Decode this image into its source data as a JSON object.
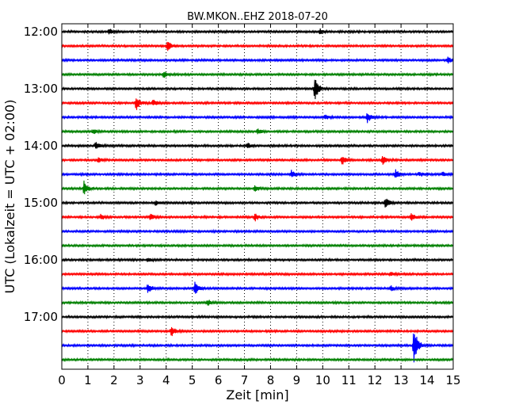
{
  "chart_data": {
    "type": "line",
    "title": "BW.MKON..EHZ 2018-07-20",
    "xlabel": "Zeit  [min]",
    "ylabel": "UTC (Lokalzeit = UTC + 02:00)",
    "xlim": [
      0,
      15
    ],
    "x_ticks": [
      0,
      1,
      2,
      3,
      4,
      5,
      6,
      7,
      8,
      9,
      10,
      11,
      12,
      13,
      14,
      15
    ],
    "x_tick_labels": [
      "0",
      "1",
      "2",
      "3",
      "4",
      "5",
      "6",
      "7",
      "8",
      "9",
      "10",
      "11",
      "12",
      "13",
      "14",
      "15"
    ],
    "y_tick_labels": [
      "12:00",
      "13:00",
      "14:00",
      "15:00",
      "16:00",
      "17:00"
    ],
    "grid": "vertical dotted",
    "line_colors": [
      "#000000",
      "#ff0000",
      "#0000ff",
      "#008000"
    ],
    "traces": [
      {
        "start": "12:00",
        "color": "#000000",
        "events": [
          {
            "t": 1.8,
            "a": 4
          },
          {
            "t": 9.9,
            "a": 3
          }
        ]
      },
      {
        "start": "12:15",
        "color": "#ff0000",
        "events": [
          {
            "t": 4.05,
            "a": 6
          }
        ]
      },
      {
        "start": "12:30",
        "color": "#0000ff",
        "events": [
          {
            "t": 14.8,
            "a": 4
          }
        ]
      },
      {
        "start": "12:45",
        "color": "#008000",
        "events": [
          {
            "t": 3.9,
            "a": 4
          }
        ]
      },
      {
        "start": "13:00",
        "color": "#000000",
        "events": [
          {
            "t": 9.7,
            "a": 16
          }
        ]
      },
      {
        "start": "13:15",
        "color": "#ff0000",
        "events": [
          {
            "t": 2.85,
            "a": 10
          },
          {
            "t": 3.5,
            "a": 4
          }
        ]
      },
      {
        "start": "13:30",
        "color": "#0000ff",
        "events": [
          {
            "t": 10.1,
            "a": 3
          },
          {
            "t": 11.7,
            "a": 7
          }
        ]
      },
      {
        "start": "13:45",
        "color": "#008000",
        "events": [
          {
            "t": 1.2,
            "a": 3
          },
          {
            "t": 7.5,
            "a": 4
          }
        ]
      },
      {
        "start": "14:00",
        "color": "#000000",
        "events": [
          {
            "t": 1.3,
            "a": 5
          },
          {
            "t": 7.1,
            "a": 4
          }
        ]
      },
      {
        "start": "14:15",
        "color": "#ff0000",
        "events": [
          {
            "t": 1.4,
            "a": 3
          },
          {
            "t": 10.75,
            "a": 6
          },
          {
            "t": 12.3,
            "a": 5
          }
        ]
      },
      {
        "start": "14:30",
        "color": "#0000ff",
        "events": [
          {
            "t": 8.8,
            "a": 5
          },
          {
            "t": 12.8,
            "a": 6
          },
          {
            "t": 13.7,
            "a": 3
          },
          {
            "t": 14.6,
            "a": 3
          }
        ]
      },
      {
        "start": "14:45",
        "color": "#008000",
        "events": [
          {
            "t": 0.85,
            "a": 9
          },
          {
            "t": 7.4,
            "a": 4
          }
        ]
      },
      {
        "start": "15:00",
        "color": "#000000",
        "events": [
          {
            "t": 3.6,
            "a": 3
          },
          {
            "t": 12.4,
            "a": 7
          }
        ]
      },
      {
        "start": "15:15",
        "color": "#ff0000",
        "events": [
          {
            "t": 1.5,
            "a": 4
          },
          {
            "t": 3.4,
            "a": 4
          },
          {
            "t": 7.4,
            "a": 5
          },
          {
            "t": 13.4,
            "a": 6
          }
        ]
      },
      {
        "start": "15:30",
        "color": "#0000ff",
        "events": []
      },
      {
        "start": "15:45",
        "color": "#008000",
        "events": []
      },
      {
        "start": "16:00",
        "color": "#000000",
        "events": [
          {
            "t": 3.3,
            "a": 3
          }
        ]
      },
      {
        "start": "16:15",
        "color": "#ff0000",
        "events": [
          {
            "t": 12.6,
            "a": 3
          }
        ]
      },
      {
        "start": "16:30",
        "color": "#0000ff",
        "events": [
          {
            "t": 3.3,
            "a": 7
          },
          {
            "t": 5.1,
            "a": 8
          },
          {
            "t": 12.6,
            "a": 4
          }
        ]
      },
      {
        "start": "16:45",
        "color": "#008000",
        "events": [
          {
            "t": 5.6,
            "a": 4
          }
        ]
      },
      {
        "start": "17:00",
        "color": "#000000",
        "events": []
      },
      {
        "start": "17:15",
        "color": "#ff0000",
        "events": [
          {
            "t": 4.2,
            "a": 7
          }
        ]
      },
      {
        "start": "17:30",
        "color": "#0000ff",
        "events": [
          {
            "t": 13.5,
            "a": 26
          }
        ]
      },
      {
        "start": "17:45",
        "color": "#008000",
        "events": []
      }
    ]
  }
}
